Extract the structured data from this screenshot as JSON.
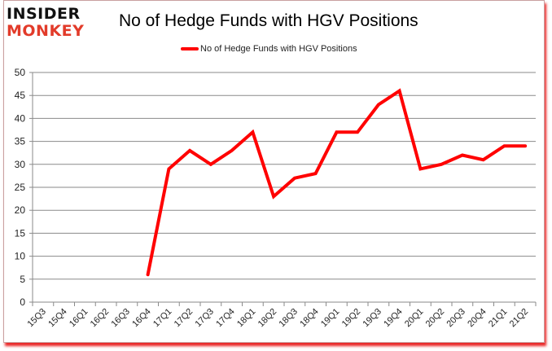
{
  "header": {
    "logo_top": "INSIDER",
    "logo_bottom": "MONKEY",
    "title": "No of Hedge Funds with HGV Positions"
  },
  "legend": {
    "label": "No of Hedge Funds with HGV Positions",
    "color": "#ff0000"
  },
  "chart_data": {
    "type": "line",
    "title": "No of Hedge Funds with HGV Positions",
    "xlabel": "",
    "ylabel": "",
    "ylim": [
      0,
      50
    ],
    "yticks": [
      0,
      5,
      10,
      15,
      20,
      25,
      30,
      35,
      40,
      45,
      50
    ],
    "grid": true,
    "legend_position": "top",
    "categories": [
      "15Q3",
      "15Q4",
      "16Q1",
      "16Q2",
      "16Q3",
      "16Q4",
      "17Q1",
      "17Q2",
      "17Q3",
      "17Q4",
      "18Q1",
      "18Q2",
      "18Q3",
      "18Q4",
      "19Q1",
      "19Q2",
      "19Q3",
      "19Q4",
      "20Q1",
      "20Q2",
      "20Q3",
      "20Q4",
      "21Q1",
      "21Q2"
    ],
    "series": [
      {
        "name": "No of Hedge Funds with HGV Positions",
        "color": "#ff0000",
        "values": [
          null,
          null,
          null,
          null,
          null,
          6,
          29,
          33,
          30,
          33,
          37,
          23,
          27,
          28,
          37,
          37,
          43,
          46,
          29,
          30,
          32,
          31,
          34,
          34
        ]
      }
    ]
  }
}
